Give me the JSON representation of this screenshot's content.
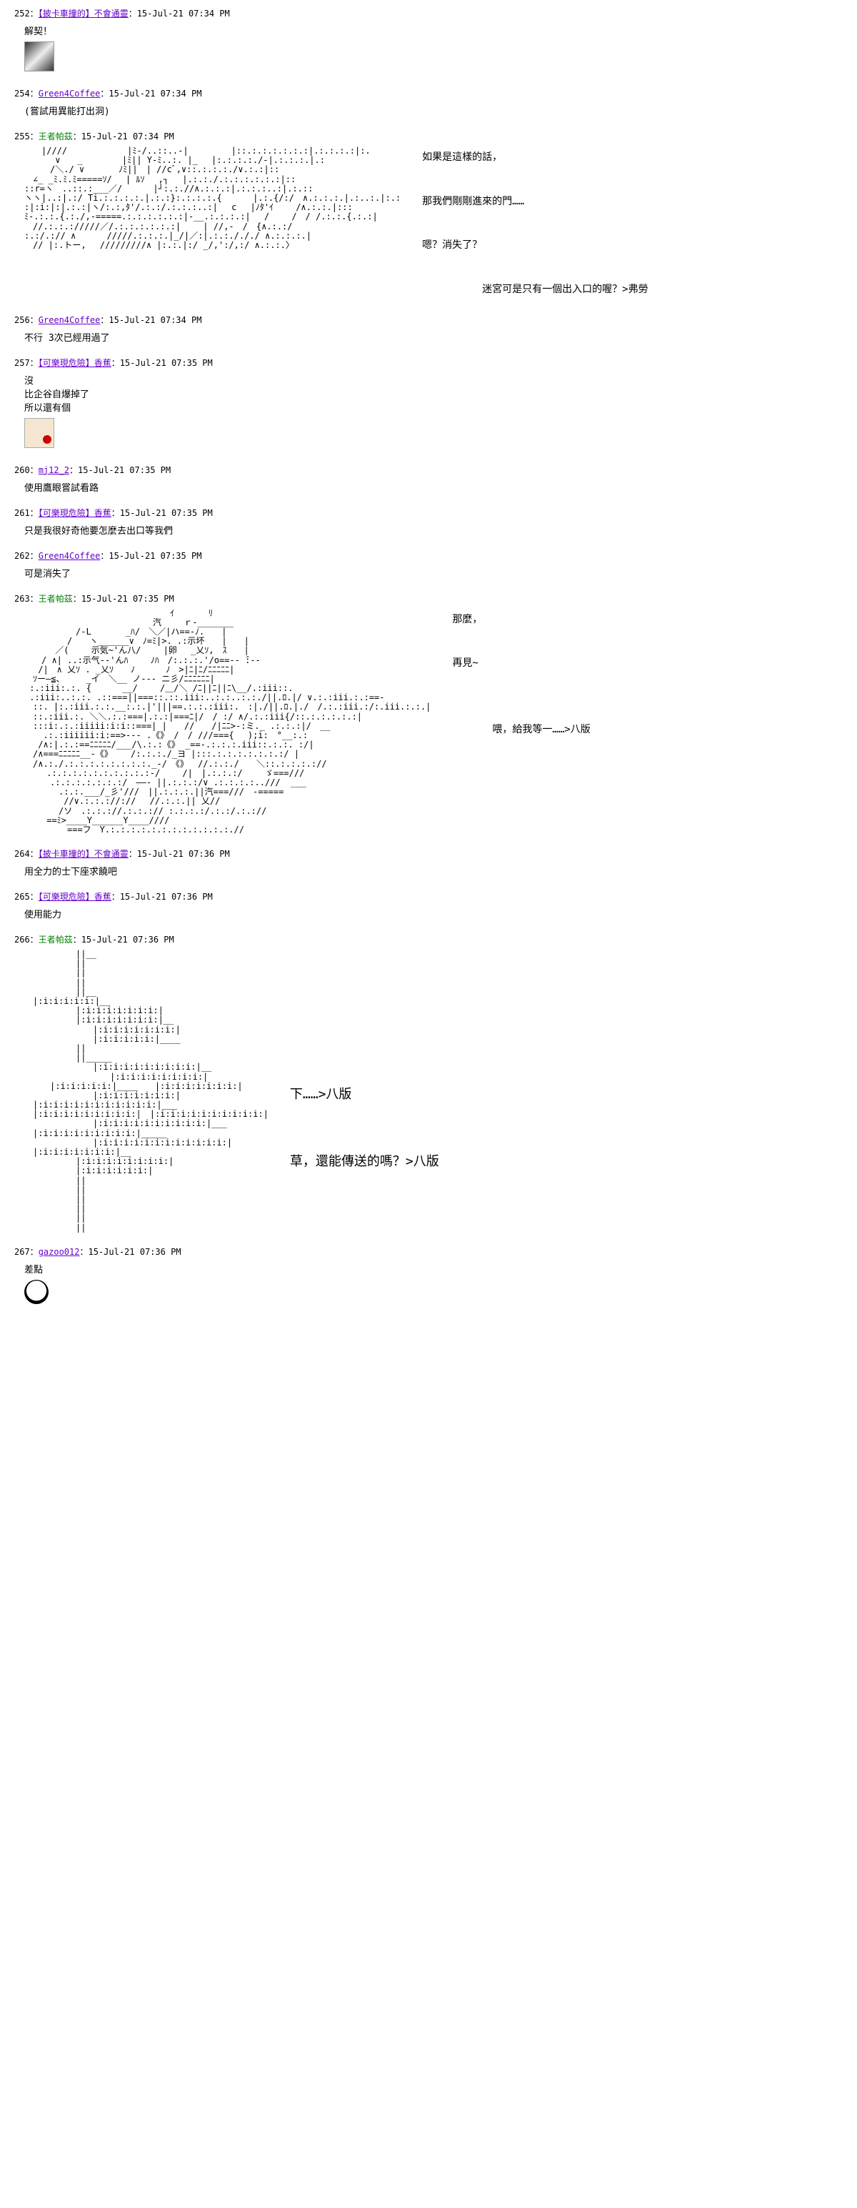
{
  "posts": [
    {
      "no": "252",
      "user": "【披卡車撞的】不會通靈",
      "userClass": "post-user",
      "time": "15-Jul-21 07:34 PM",
      "body": "解契！",
      "thumb": "thumb"
    },
    {
      "no": "254",
      "user": "Green4Coffee",
      "userClass": "post-user",
      "time": "15-Jul-21 07:34 PM",
      "body": "(嘗試用異能打出洞)"
    },
    {
      "no": "255",
      "user": "王者帕茲",
      "userClass": "post-user-green",
      "time": "15-Jul-21 07:34 PM",
      "aa": "aa1",
      "side": [
        "如果是這樣的話，",
        "",
        "那我們剛剛進來的門……",
        "",
        "嗯？消失了？",
        "",
        "　　　　　　迷宮可是只有一個出入口的喔？>弗勞"
      ]
    },
    {
      "no": "256",
      "user": "Green4Coffee",
      "userClass": "post-user",
      "time": "15-Jul-21 07:34 PM",
      "body": "不行 3次已經用過了"
    },
    {
      "no": "257",
      "user": "【可樂現危險】香蕉",
      "userClass": "post-user",
      "time": "15-Jul-21 07:35 PM",
      "body": "沒\n比企谷自爆掉了\n所以還有個",
      "thumb": "thumb2"
    },
    {
      "no": "260",
      "user": "mj12_2",
      "userClass": "post-user",
      "time": "15-Jul-21 07:35 PM",
      "body": "使用鷹眼嘗試看路"
    },
    {
      "no": "261",
      "user": "【可樂現危險】香蕉",
      "userClass": "post-user",
      "time": "15-Jul-21 07:35 PM",
      "body": "只是我很好奇他要怎麼去出口等我們"
    },
    {
      "no": "262",
      "user": "Green4Coffee",
      "userClass": "post-user",
      "time": "15-Jul-21 07:35 PM",
      "body": "可是消失了"
    },
    {
      "no": "263",
      "user": "王者帕茲",
      "userClass": "post-user-green",
      "time": "15-Jul-21 07:35 PM",
      "aa": "aa2",
      "side": [
        "那麼，",
        "",
        "再見~",
        "",
        "",
        "　　　　喂，給我等一……>八版"
      ]
    },
    {
      "no": "264",
      "user": "【披卡車撞的】不會通靈",
      "userClass": "post-user",
      "time": "15-Jul-21 07:36 PM",
      "body": "用全力的士下座求饒吧"
    },
    {
      "no": "265",
      "user": "【可樂現危險】香蕉",
      "userClass": "post-user",
      "time": "15-Jul-21 07:36 PM",
      "body": "使用能力"
    },
    {
      "no": "266",
      "user": "王者帕茲",
      "userClass": "post-user-green",
      "time": "15-Jul-21 07:36 PM",
      "aa": "aa3",
      "sideLarge": [
        "下……>八版",
        "",
        "草，還能傳送的嗎？>八版"
      ]
    },
    {
      "no": "267",
      "user": "gazoo012",
      "userClass": "post-user",
      "time": "15-Jul-21 07:36 PM",
      "body": "差點",
      "thumb": "thumb3"
    }
  ],
  "aa": {
    "aa1": "　　|////　　　　　　　|ﾐ-/..::..-|　　　　　|::.:.:.:.:.:.:|.:.:.:.:|:.\n　　　 ∨　　_　　　　 |ﾐ|| Y-ﾐ..:. |_　 |:.:.:.:./-|.:.:.:.|.:\n　　　/＼./ ∨　　　　ﾉﾐ||　| //cﾞ,∨::.:.:.:./∨.:.:|::\n　∠_ _ﾐ.ﾐ.ﾐ=====ｿ/　 | ﾙｿ　 ,┐　 |.:.:./.:.:.:.:.:.:|::\n::r=ヽ　..::.:___／/　　　 |┘:.:.//∧.:.:.:|.:.:.:..:|.:.::\nヽヽ|..:|.:/ Ti.:.:.:.:.|.:.:}:.:.:.:.{　　　 |.:.{/:/　∧.:.:.:.|.:..:.|:.:\n:|:i:|:|.:.:|ヽ/:.:,ﾀ'/.:.:/.:.:.:..:|　 c　 |ﾉﾀ'ｲ　　 /∧.:.:.|:::\nﾐ-.:.:.{.:./,-=====.:.:.:.:.:.:|-__.:.:.:.:|　 /　　 /　/ /.:.:.{.:.:|\n　//.:.:.://///／/.:.:.:.:.:.:|　　 | //,-　/　{∧.:.:/\n:.:/.:// ∧　　　 /////.:.:.:.|_/|／:|.:.:./././ ∧.:.:.:.|\n　// |:.トー,　 /////////∧ |:.:.|:/ _/,':/,:/ ∧.:.:.〉",
    "aa2": "　　　　　　　　　　　　　　　　　ｲ　　　　ﾘ\n　　　　　　　　　　　　　　　汽　　 ｒ-_______\n　　　　　　/-L　　　　_ﾊ/　＼／|ハ==-ﾉ.　　|\n　　　　　/　　ヽ______∨　ﾉ=ﾐ|>. .:示坏　　|　　|\n　　　 ／(　　 示気~'ん八/　　 |卵　 _乂ｿ,　ｽ　　|\n　　/ ∧| ..:示气--'んﾊ　　 ﾉﾊ　/:.:.:.'/o==-- ̄:--\n　 /|　∧ 乂ｿ . _乂ｿ　　ﾉ　　　 ﾉ　>|ﾆ|ﾆ/ﾆﾆﾆﾆﾆ|\n　ｿー―≦、　　　_イ　＼__ ノ--- ニ彡/ﾆﾆﾆﾆﾆﾆ|\n :.:iii:.:. {　　　 __/　　 /＿/＼ /ﾆ||ﾆ||ﾆ\\__/.:iii::.\n .:iii:..:.:. .::===||===::.::.iii:..:.:..:.:./||.ﾛ.|/ ∨.:.:iii.:.:==-\n　::. |:.:iii.:.:.__:.:.|'|||==.:.:.:iii:.　:|./||.ﾛ.|./　/.:.:iii.:/:.iii.:.:.|\n　::.:iii.:. ＼＼.:.:===|.:.:|===ﾆ|/　/ :/ ∧/.:.:iii{/::.:.:.:.:.:|\n　:::i:.:.:iiiii:i:i::===| |　　//　　/|ﾆﾆ>-:ミ._ .:.:.:|/　__\n 　 .:.:iiiiii:i:==>--- .《》 /　/ ///==={ 　);i:　°__:.:\n　 /∧:|.:.:==ﾆﾆﾆﾆﾆ/___/\\.:.:《》 _==-.:.:.:.iii::.:.:. :/|\n　/∧===ﾆﾆﾆﾆﾆ__-《》　　 /:.:.:./_ヨ |:::.:.:.:.:.:.:.:/ |\n　/∧.:./.:.:.:.:.:.:.:.:._-/　《》　 //.:.:./　　＼::.:.:.:.://\n　　 .:.:.:.:.:.:.:.:.:.:-/　　 /|　|.:.:.:/　　 ゞ===///\n　　　.:.:.:.:.:.:.:/　――- ||.:.:.:/∨ .:.:.:.:..///  ___\n　　　　.:.:.___/_彡'///　||.:.:.:.||汽===///　-=====\n　　　　 //∨.:.:.://:// 　//.:.:.|| 乂//\n　　　　/ソ　.:.:.://.:.:.:// :.:.:.:/.:.:/.:.://\n　　 ==ﾐ>____Y______Y____////\n　　　　　===フ　Y.:.:.:.:.:.:.:.:.:.:.:.:.//",
    "aa3": "　　　　　　||__\n　　　　　　||\n　　　　　　||\n　　　　　　||\n　　　　　　||__\n　|:i:i:i:i:i:|__\n　　　　　　|:i:i:i:i:i:i:i:|\n　　　　　　|:i:i:i:i:i:i:i:|__\n　　　　　　　　|:i:i:i:i:i:i:i:|\n　　　　　　　　|:i:i:i:i:i:|____\n　　　　　　||\n　　　　　　||_____\n　　　　　　　　|:i:i:i:i:i:i:i:i:i:|__\n　　　　　　　　　　|:i:i:i:i:i:i:i:i:|\n　　　|:i:i:i:i:i:|____　　|:i:i:i:i:i:i:i:|\n　　　　　　　　|:i:i:i:i:i:i:i:|\n　|:i:i:i:i:i:i:i:i:i:i:i:|___\n　|:i:i:i:i:i:i:i:i:i:|　|:i:i:i:i:i:i:i:i:i:i:|\n　　　　　　　　|:i:i:i:i:i:i:i:i:i:i:|___\n　|:i:i:i:i:i:i:i:i:i:|_____\n　　　　　　　　|:i:i:i:i:i:i:i:i:i:i:i:i:|\n　|:i:i:i:i:i:i:i:|__\n　　　　　　|:i:i:i:i:i:i:i:i:|\n　　　　　　|:i:i:i:i:i:i:|\n　　　　　　||\n　　　　　　||\n　　　　　　||\n　　　　　　||\n　　　　　　||\n　　　　　　||"
  }
}
